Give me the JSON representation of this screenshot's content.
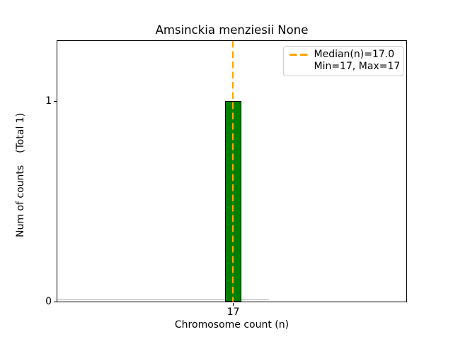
{
  "figure": {
    "title": "Amsinckia menziesii None",
    "xlabel": "Chromosome count (n)",
    "ylabel": "Num of counts",
    "ylabel_total": "(Total 1)"
  },
  "axes": {
    "x_ticks": [
      "17"
    ],
    "y_ticks": [
      "0",
      "1"
    ]
  },
  "legend": {
    "median_label": "Median(n)=17.0",
    "minmax_label": "Min=17, Max=17"
  },
  "colors": {
    "bar_fill": "#008000",
    "bar_edge": "#000000",
    "median_line": "#FFA500",
    "legend_border": "#cccccc",
    "zero_line": "#b3b3b3"
  },
  "chart_data": {
    "type": "bar",
    "title": "Amsinckia menziesii None",
    "xlabel": "Chromosome count (n)",
    "ylabel": "Num of counts (Total 1)",
    "x": [
      17
    ],
    "values": [
      1
    ],
    "total_counts": 1,
    "median_n": 17.0,
    "min_n": 17,
    "max_n": 17,
    "x_tick_labels": [
      "17"
    ],
    "y_tick_labels": [
      "0",
      "1"
    ],
    "ylim": [
      0,
      1.31
    ],
    "grid": false,
    "bar_color": "#008000",
    "median_line_color": "#FFA500",
    "median_line_style": "dashed",
    "legend_position": "upper right",
    "legend_entries": [
      "Median(n)=17.0",
      "Min=17, Max=17"
    ]
  }
}
